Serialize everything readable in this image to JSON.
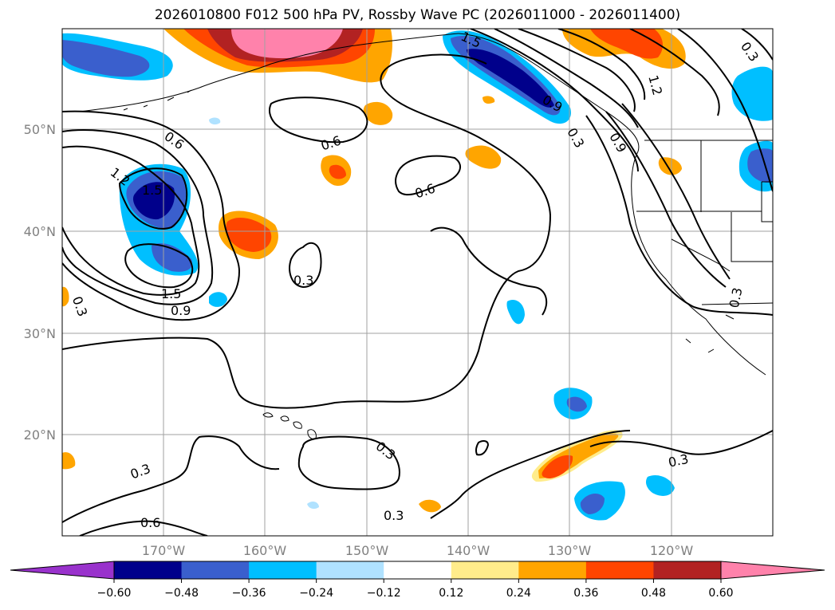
{
  "title": "2026010800 F012 500 hPa PV, Rossby Wave PC (2026011000 - 2026011400)",
  "lat_labels": [
    "50°N",
    "40°N",
    "30°N",
    "20°N"
  ],
  "lon_labels": [
    "170°W",
    "160°W",
    "150°W",
    "140°W",
    "130°W",
    "120°W"
  ],
  "colorbar": {
    "tick_labels": [
      "−0.60",
      "−0.48",
      "−0.36",
      "−0.24",
      "−0.12",
      "0.12",
      "0.24",
      "0.36",
      "0.48",
      "0.60"
    ],
    "colors": [
      "#9932cc",
      "#00008b",
      "#3a5fcd",
      "#00bfff",
      "#b0e2ff",
      "#ffffff",
      "#ffec8b",
      "#ffa500",
      "#ff4500",
      "#b22222",
      "#ff82ab"
    ]
  },
  "contour_labels": [
    "0.6",
    "1.2",
    "1.5",
    "0.6",
    "0.6",
    "1.5",
    "0.9",
    "0.3",
    "0.3",
    "0.3",
    "0.6",
    "0.3",
    "0.3",
    "0.3",
    "0.3",
    "0.9",
    "1.2",
    "0.3",
    "0.3",
    "1.5",
    "0.9"
  ]
}
